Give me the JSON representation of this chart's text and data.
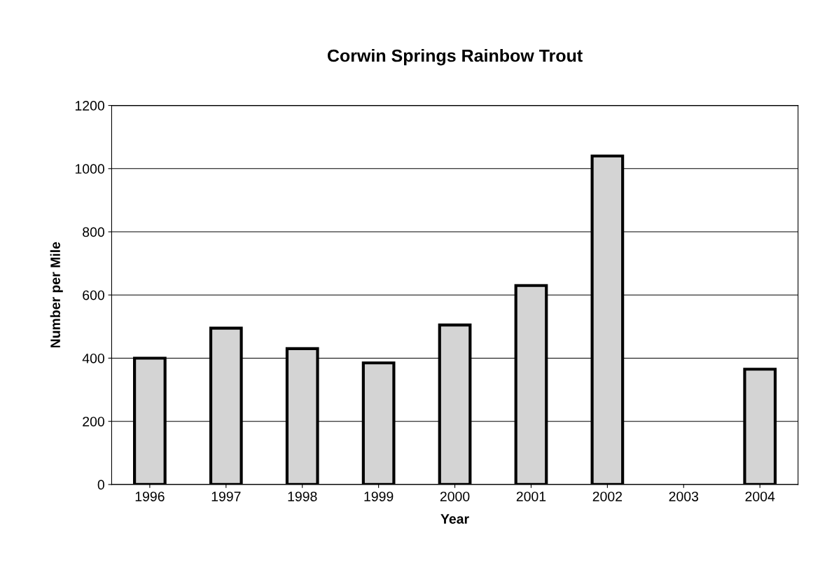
{
  "chart_data": {
    "type": "bar",
    "title": "Corwin Springs Rainbow Trout",
    "xlabel": "Year",
    "ylabel": "Number per Mile",
    "categories": [
      "1996",
      "1997",
      "1998",
      "1999",
      "2000",
      "2001",
      "2002",
      "2003",
      "2004"
    ],
    "values": [
      400,
      495,
      430,
      385,
      505,
      630,
      1040,
      null,
      365
    ],
    "color": "#d4d4d4",
    "ylim": [
      0,
      1200
    ],
    "yticks": [
      0,
      200,
      400,
      600,
      800,
      1000,
      1200
    ],
    "grid": "y"
  }
}
